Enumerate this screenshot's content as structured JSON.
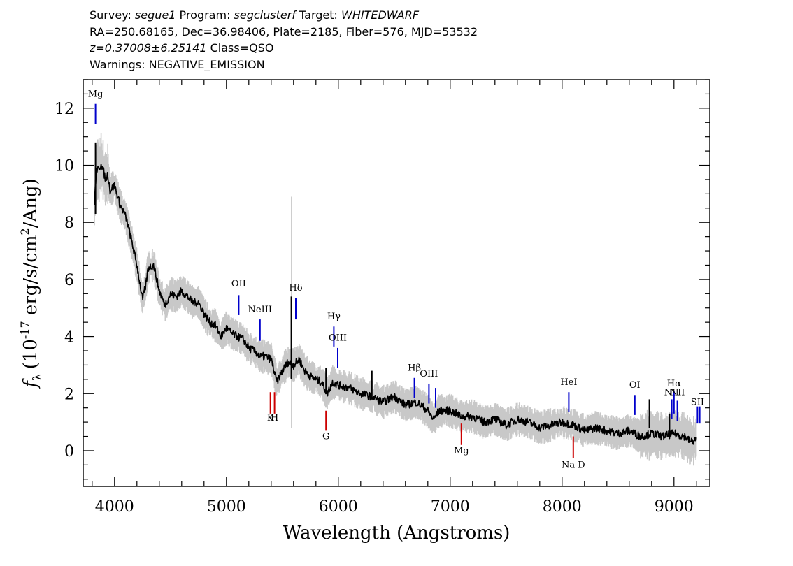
{
  "header": {
    "line1": {
      "survey_label": "Survey: ",
      "survey": "segue1",
      "program_label": " Program: ",
      "program": "segclusterf",
      "target_label": " Target: ",
      "target": "WHITEDWARF"
    },
    "line2": "RA=250.68165, Dec=36.98406, Plate=2185, Fiber=576, MJD=53532",
    "line3": {
      "z": "z=0.37008±6.25141",
      "class": " Class=QSO"
    },
    "line4": "Warnings: NEGATIVE_EMISSION"
  },
  "chart_data": {
    "type": "line",
    "xlabel": "Wavelength (Angstroms)",
    "ylabel": "f_λ (10^-17 erg/s/cm^2/Ang)",
    "ylabel_parts": {
      "f": "f",
      "lambda": "λ",
      "pre": "(10",
      "exp1": "-17",
      "mid": " erg/s/cm",
      "exp2": "2",
      "post": "/Ang)"
    },
    "xlim": [
      3720,
      9320
    ],
    "ylim": [
      -1.25,
      13.0
    ],
    "x_ticks": [
      4000,
      5000,
      6000,
      7000,
      8000,
      9000
    ],
    "y_ticks": [
      0,
      2,
      4,
      6,
      8,
      10,
      12
    ],
    "series": [
      {
        "color": "#000000",
        "x": [
          3820,
          3840,
          3860,
          3880,
          3900,
          3920,
          3940,
          3960,
          3980,
          4000,
          4050,
          4100,
          4150,
          4200,
          4250,
          4280,
          4300,
          4350,
          4400,
          4450,
          4500,
          4550,
          4600,
          4650,
          4700,
          4750,
          4800,
          4850,
          4900,
          4950,
          5000,
          5050,
          5100,
          5150,
          5200,
          5250,
          5300,
          5350,
          5400,
          5450,
          5500,
          5550,
          5600,
          5650,
          5700,
          5750,
          5800,
          5850,
          5900,
          5950,
          6000,
          6100,
          6200,
          6300,
          6400,
          6500,
          6600,
          6700,
          6800,
          6850,
          6900,
          7000,
          7100,
          7200,
          7300,
          7400,
          7500,
          7600,
          7700,
          7800,
          7900,
          8000,
          8100,
          8200,
          8300,
          8400,
          8500,
          8600,
          8700,
          8800,
          8900,
          9000,
          9100,
          9150,
          9200
        ],
        "y": [
          8.7,
          9.9,
          9.8,
          10.1,
          9.8,
          9.5,
          9.7,
          9.1,
          9.2,
          9.3,
          8.6,
          8.2,
          7.4,
          6.5,
          5.3,
          5.8,
          6.4,
          6.5,
          5.6,
          5.1,
          5.5,
          5.4,
          5.6,
          5.4,
          5.2,
          5.2,
          4.8,
          4.5,
          4.4,
          4.0,
          4.3,
          4.1,
          4.0,
          3.9,
          3.6,
          3.5,
          3.3,
          3.3,
          3.2,
          2.4,
          2.8,
          3.1,
          3.0,
          3.2,
          2.8,
          2.6,
          2.5,
          2.4,
          2.0,
          2.4,
          2.3,
          2.2,
          2.0,
          1.9,
          1.7,
          1.9,
          1.6,
          1.7,
          1.4,
          1.1,
          1.4,
          1.4,
          1.2,
          1.2,
          1.0,
          1.1,
          0.9,
          1.1,
          1.0,
          0.8,
          0.9,
          1.0,
          0.9,
          0.7,
          0.8,
          0.7,
          0.6,
          0.7,
          0.5,
          0.6,
          0.5,
          0.6,
          0.5,
          0.3,
          0.4
        ]
      }
    ],
    "spikes": [
      {
        "x": 3830,
        "ylo": 8.3,
        "yhi": 10.8
      },
      {
        "x": 5580,
        "ylo": 2.5,
        "yhi": 5.4
      },
      {
        "x": 5890,
        "ylo": 2.0,
        "yhi": 2.9
      },
      {
        "x": 6300,
        "ylo": 1.8,
        "yhi": 2.8
      },
      {
        "x": 8780,
        "ylo": 0.8,
        "yhi": 1.8
      },
      {
        "x": 8960,
        "ylo": 0.5,
        "yhi": 1.3
      }
    ],
    "annotations": {
      "emission": [
        {
          "label": "Mg",
          "x": 3830,
          "yhi": 12.15,
          "ylo": 11.45,
          "label_y": 12.4
        },
        {
          "label": "OII",
          "x": 5110,
          "yhi": 5.45,
          "ylo": 4.75,
          "label_y": 5.75
        },
        {
          "label": "NeIII",
          "x": 5300,
          "yhi": 4.6,
          "ylo": 3.85,
          "label_y": 4.85
        },
        {
          "label": "Hδ",
          "x": 5620,
          "yhi": 5.35,
          "ylo": 4.6,
          "label_y": 5.6
        },
        {
          "label": "Hγ",
          "x": 5960,
          "yhi": 4.35,
          "ylo": 3.65,
          "label_y": 4.6
        },
        {
          "label": "OIII",
          "x": 5995,
          "yhi": 3.6,
          "ylo": 2.9,
          "label_y": 3.85
        },
        {
          "label": "Hβ",
          "x": 6680,
          "yhi": 2.55,
          "ylo": 1.85,
          "label_y": 2.8
        },
        {
          "label": "OIII",
          "x": 6810,
          "yhi": 2.35,
          "ylo": 1.65,
          "label_y": 2.6
        },
        {
          "label": "OIII",
          "x": 6870,
          "yhi": 2.2,
          "ylo": 1.5,
          "label_y": 2.6,
          "hide_label": true
        },
        {
          "label": "HeI",
          "x": 8060,
          "yhi": 2.05,
          "ylo": 1.35,
          "label_y": 2.3
        },
        {
          "label": "OI",
          "x": 8650,
          "yhi": 1.95,
          "ylo": 1.25,
          "label_y": 2.2
        },
        {
          "label": "NII",
          "x": 8980,
          "yhi": 1.8,
          "ylo": 1.1,
          "label_y": 1.95
        },
        {
          "label": "Hα",
          "x": 9000,
          "yhi": 2.1,
          "ylo": 1.3,
          "label_y": 2.25
        },
        {
          "label": "NII",
          "x": 9030,
          "yhi": 1.75,
          "ylo": 1.05,
          "label_y": 1.95
        },
        {
          "label": "SII",
          "x": 9210,
          "yhi": 1.55,
          "ylo": 0.95,
          "label_y": 1.6
        },
        {
          "label": "SII",
          "x": 9230,
          "yhi": 1.55,
          "ylo": 0.95,
          "label_y": 1.6,
          "hide_label": true
        }
      ],
      "absorption": [
        {
          "label": "K",
          "x": 5393,
          "yhi": 2.05,
          "ylo": 1.3,
          "label_y": 1.05
        },
        {
          "label": "H",
          "x": 5430,
          "yhi": 2.05,
          "ylo": 1.3,
          "label_y": 1.05
        },
        {
          "label": "G",
          "x": 5890,
          "yhi": 1.4,
          "ylo": 0.7,
          "label_y": 0.4
        },
        {
          "label": "Mg",
          "x": 7100,
          "yhi": 0.95,
          "ylo": 0.2,
          "label_y": -0.1
        },
        {
          "label": "Na D",
          "x": 8100,
          "yhi": 0.5,
          "ylo": -0.25,
          "label_y": -0.6
        }
      ]
    },
    "colors": {
      "spectrum": "#000000",
      "noise": "#c8c8c8",
      "emission": "#0000cc",
      "absorption": "#cc0000",
      "axes": "#000000"
    },
    "grid": false
  }
}
